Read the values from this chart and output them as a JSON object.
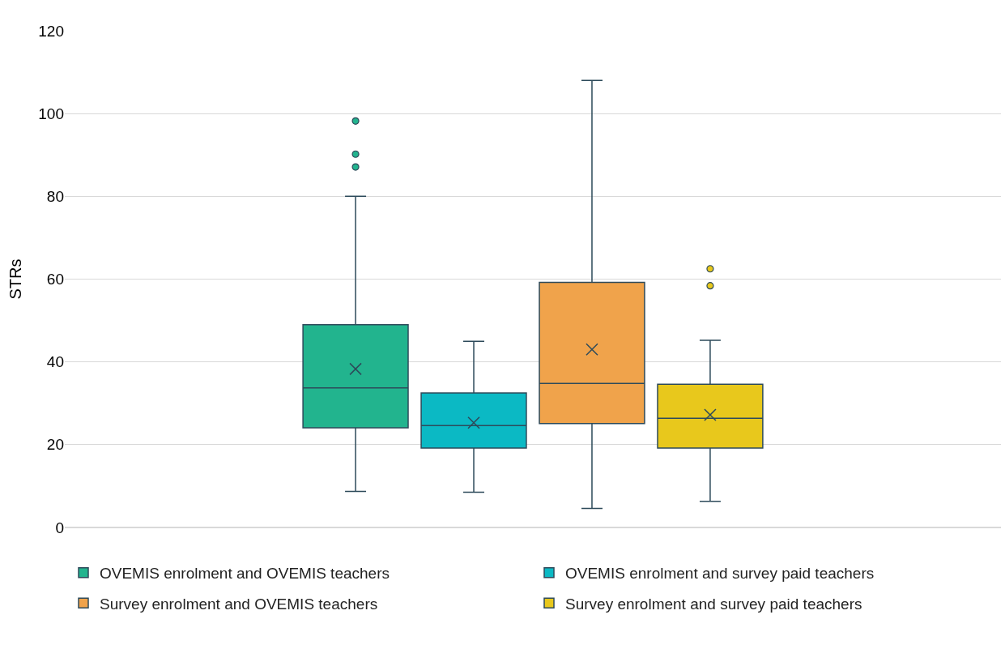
{
  "chart_data": {
    "type": "box",
    "ylabel": "STRs",
    "categories": [
      null
    ],
    "ylim": [
      0,
      120
    ],
    "yticks": [
      0,
      20,
      40,
      60,
      80,
      100,
      120
    ],
    "grid": "y",
    "legend": "bottom",
    "tick_labels": "y",
    "series": [
      {
        "name": "OVEMIS enrolment and OVEMIS teachers",
        "color": "#22b48e",
        "boxes": [
          {
            "low": 8.7,
            "q1": 24.1,
            "median": 33.7,
            "q3": 49,
            "high": 80,
            "mean": 38.3,
            "outliers": [
              98.2,
              90.2,
              87.1
            ]
          }
        ]
      },
      {
        "name": "OVEMIS enrolment and survey paid teachers",
        "color": "#0bb9c4",
        "boxes": [
          {
            "low": 8.5,
            "q1": 19.2,
            "median": 24.6,
            "q3": 32.5,
            "high": 45,
            "mean": 25.3
          }
        ]
      },
      {
        "name": "Survey enrolment and OVEMIS teachers",
        "color": "#f0a34b",
        "boxes": [
          {
            "low": 4.6,
            "q1": 25.1,
            "median": 34.8,
            "q3": 59.2,
            "high": 108,
            "mean": 43
          }
        ]
      },
      {
        "name": "Survey enrolment and survey paid teachers",
        "color": "#e8c81c",
        "boxes": [
          {
            "low": 6.3,
            "q1": 19.2,
            "median": 26.4,
            "q3": 34.6,
            "high": 45.2,
            "mean": 27.2,
            "outliers": [
              62.5,
              58.4
            ]
          }
        ]
      }
    ]
  }
}
